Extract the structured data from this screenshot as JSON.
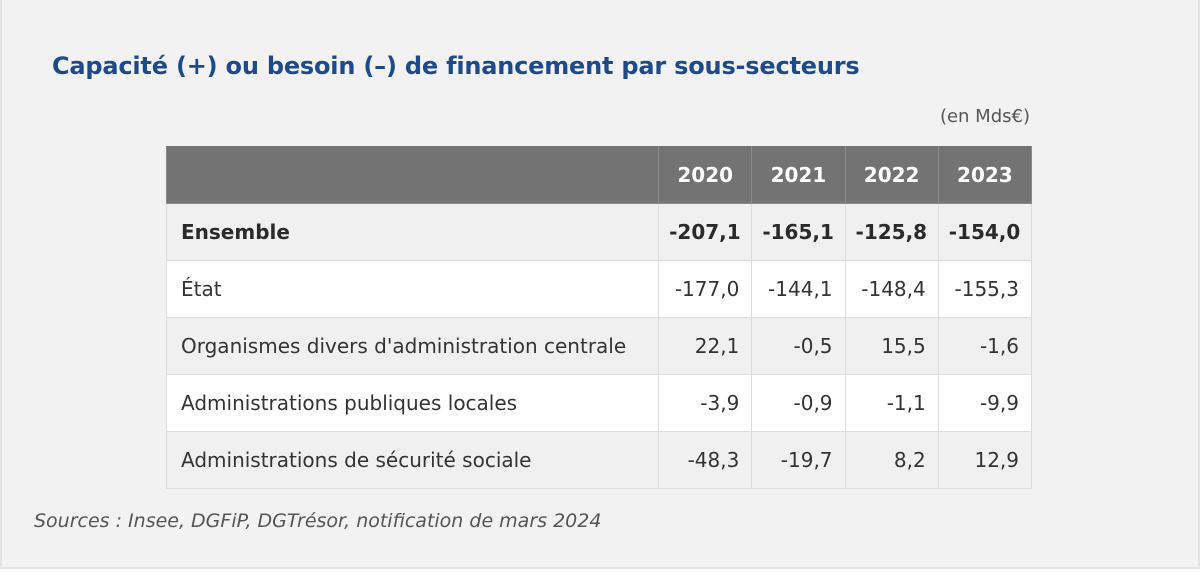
{
  "title": "Capacité (+) ou besoin (–) de financement par sous-secteurs",
  "unit": "(en Mds€)",
  "table": {
    "years": [
      "2020",
      "2021",
      "2022",
      "2023"
    ],
    "rows": [
      {
        "label": "Ensemble",
        "values": [
          "-207,1",
          "-165,1",
          "-125,8",
          "-154,0"
        ],
        "bold": true
      },
      {
        "label": "État",
        "values": [
          "-177,0",
          "-144,1",
          "-148,4",
          "-155,3"
        ],
        "bold": false
      },
      {
        "label": "Organismes divers d'administration centrale",
        "values": [
          "22,1",
          "-0,5",
          "15,5",
          "-1,6"
        ],
        "bold": false
      },
      {
        "label": "Administrations publiques locales",
        "values": [
          "-3,9",
          "-0,9",
          "-1,1",
          "-9,9"
        ],
        "bold": false
      },
      {
        "label": "Administrations de sécurité sociale",
        "values": [
          "-48,3",
          "-19,7",
          "8,2",
          "12,9"
        ],
        "bold": false
      }
    ]
  },
  "source": "Sources : Insee, DGFiP, DGTrésor, notification de mars 2024",
  "colors": {
    "title": "#1d4a8a",
    "header_bg": "#737373",
    "panel_bg": "#f2f2f2"
  }
}
